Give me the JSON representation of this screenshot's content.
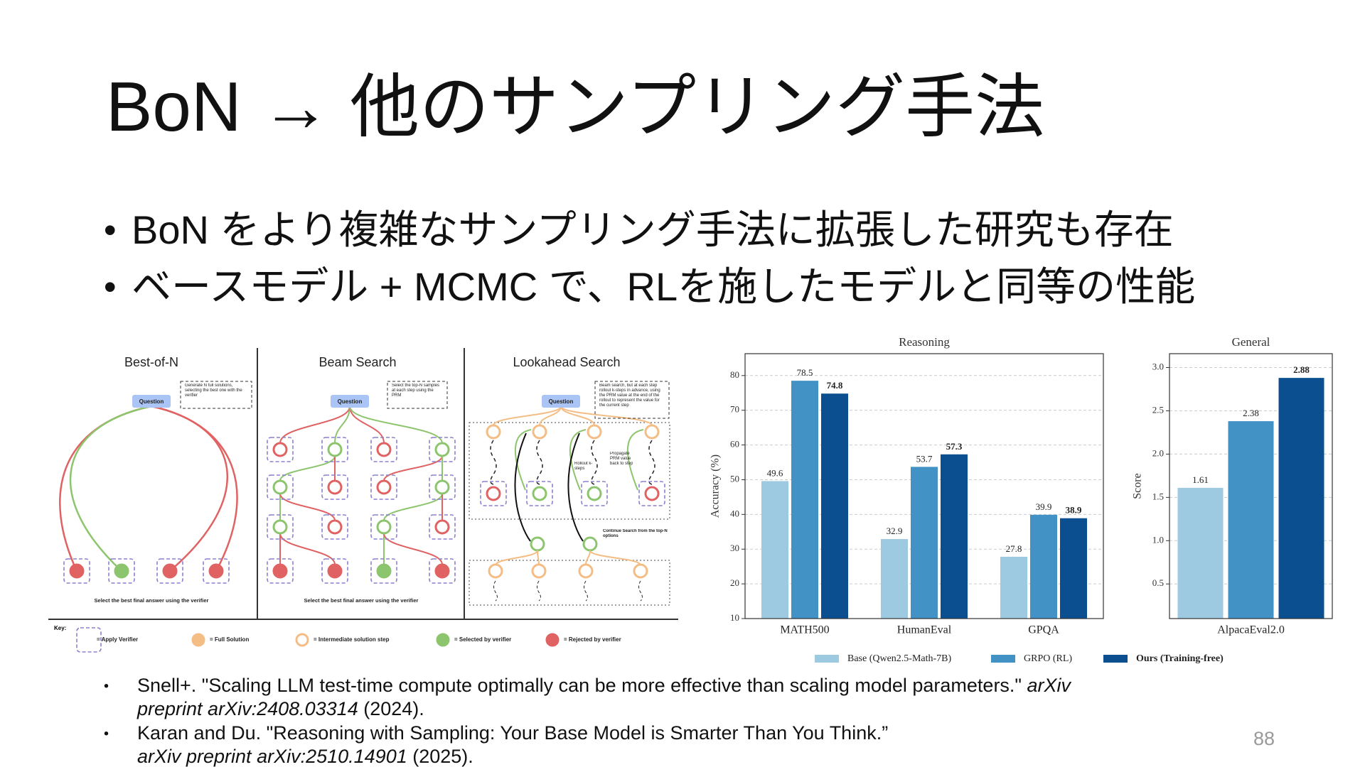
{
  "title": "BoN → 他のサンプリング手法",
  "bullets": [
    "BoN をより複雑なサンプリング手法に拡張した研究も存在",
    "ベースモデル + MCMC で、RLを施したモデルと同等の性能"
  ],
  "diagram": {
    "question": "Question",
    "panels": [
      {
        "title": "Best-of-N",
        "note": "Generate N full solutions, selecting the best one with the verifier",
        "footer": "Select the best final answer using the verifier"
      },
      {
        "title": "Beam Search",
        "note": "Select the top-N samples at each step using the PRM",
        "footer": "Select the best final answer using the verifier"
      },
      {
        "title": "Lookahead Search",
        "note": "Beam search, but at each step rollout k-steps in advance, using the PRM value at the end of the rollout to represent the value for the current step",
        "annotations": [
          "Rollout k-steps",
          "Propagate PRM value back to step",
          "Continue Search from the top-N options"
        ]
      }
    ],
    "key": {
      "title": "Key:",
      "items": [
        "= Apply Verifier",
        "= Full Solution",
        "= Intermediate solution step",
        "= Selected by verifier",
        "= Rejected by verifier"
      ]
    }
  },
  "chart_data": [
    {
      "type": "bar",
      "title": "Reasoning",
      "ylabel": "Accuracy (%)",
      "categories": [
        "MATH500",
        "HumanEval",
        "GPQA"
      ],
      "series": [
        {
          "name": "Base (Qwen2.5-Math-7B)",
          "color": "#9ecae1",
          "values": [
            49.6,
            32.9,
            27.8
          ]
        },
        {
          "name": "GRPO (RL)",
          "color": "#4292c6",
          "values": [
            78.5,
            53.7,
            39.9
          ]
        },
        {
          "name": "Ours (Training-free)",
          "color": "#0b4f91",
          "values": [
            74.8,
            57.3,
            38.9
          ],
          "bold": true
        }
      ],
      "ylim": [
        10,
        86.3
      ],
      "yticks": [
        10,
        20,
        30,
        40,
        50,
        60,
        70,
        80
      ],
      "grid": true
    },
    {
      "type": "bar",
      "title": "General",
      "ylabel": "Score",
      "categories": [
        "AlpacaEval2.0"
      ],
      "series": [
        {
          "color": "#9ecae1",
          "values": [
            1.61
          ]
        },
        {
          "color": "#4292c6",
          "values": [
            2.38
          ]
        },
        {
          "color": "#0b4f91",
          "values": [
            2.88
          ],
          "bold": true
        }
      ],
      "ylim": [
        0.1,
        3.16
      ],
      "yticks": [
        0.5,
        {
          "value": 1,
          "label": "1.0"
        },
        1.5,
        {
          "value": 2,
          "label": "2.0"
        },
        2.5,
        {
          "value": 3,
          "label": "3.0"
        }
      ],
      "grid": true
    }
  ],
  "references": [
    [
      [
        {
          "text": "Snell+. \"Scaling LLM test-time compute optimally can be more effective than scaling model parameters.\" ",
          "italic": false
        },
        {
          "text": "arXiv",
          "italic": true
        }
      ],
      [
        {
          "text": "preprint arXiv:2408.03314",
          "italic": true
        },
        {
          "text": " (2024).",
          "italic": false
        }
      ]
    ],
    [
      [
        {
          "text": "Karan and Du. \"Reasoning with Sampling: Your Base Model is Smarter Than You Think.”",
          "italic": false
        }
      ],
      [
        {
          "text": "arXiv preprint arXiv:2510.14901",
          "italic": true
        },
        {
          "text": " (2025).",
          "italic": false
        }
      ]
    ]
  ],
  "page_number": "88"
}
